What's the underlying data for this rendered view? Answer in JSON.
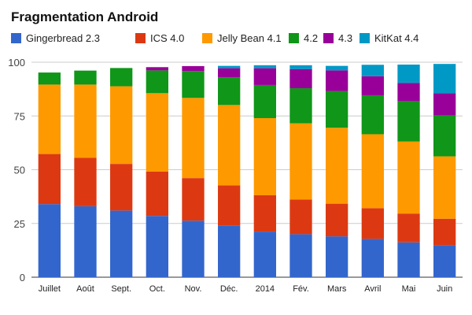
{
  "chart_data": {
    "type": "bar",
    "stacked": true,
    "title": "Fragmentation Android",
    "xlabel": "",
    "ylabel": "",
    "ylim": [
      0,
      100
    ],
    "yticks": [
      "0",
      "25",
      "50",
      "75",
      "100"
    ],
    "grid": true,
    "legend_position": "top",
    "categories": [
      "Juillet",
      "Août",
      "Sept.",
      "Oct.",
      "Nov.",
      "Déc.",
      "2014",
      "Fév.",
      "Mars",
      "Avril",
      "Mai",
      "Juin"
    ],
    "series": [
      {
        "name": "Gingerbread 2.3",
        "color": "#3366cc",
        "values": [
          34,
          33,
          31,
          28.5,
          26.3,
          24.1,
          21.2,
          20,
          19,
          17.8,
          16.2,
          14.9
        ]
      },
      {
        "name": "ICS 4.0",
        "color": "#dc3912",
        "values": [
          23.3,
          22.5,
          21.7,
          20.6,
          19.8,
          18.6,
          16.9,
          16.1,
          15.2,
          14.3,
          13.4,
          12.3
        ]
      },
      {
        "name": "Jelly Bean 4.1",
        "color": "#ff9900",
        "values": [
          32.3,
          34.1,
          36.1,
          36.5,
          37.3,
          37.4,
          35.9,
          35.5,
          35.3,
          34.4,
          33.5,
          29
        ]
      },
      {
        "name": "4.2",
        "color": "#109618",
        "values": [
          5.6,
          6.5,
          8.5,
          10.6,
          12.5,
          12.9,
          15.4,
          16.3,
          17.1,
          18.1,
          18.8,
          19.1
        ]
      },
      {
        "name": "4.3",
        "color": "#990099",
        "values": [
          0,
          0,
          0,
          1.5,
          2.3,
          4.2,
          7.8,
          8.9,
          9.6,
          8.9,
          8.5,
          10.3
        ]
      },
      {
        "name": "KitKat 4.4",
        "color": "#0099c6",
        "values": [
          0,
          0,
          0,
          0,
          0,
          1.1,
          1.4,
          1.8,
          2.1,
          5.3,
          8.5,
          13.6
        ]
      }
    ]
  }
}
